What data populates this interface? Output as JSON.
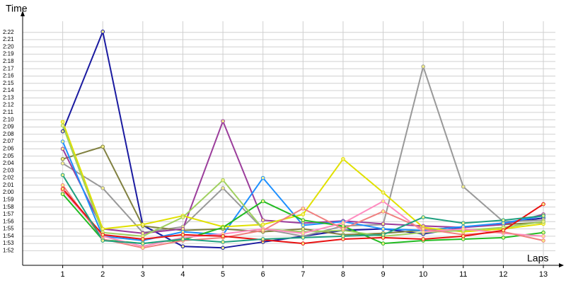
{
  "chart_data": {
    "type": "line",
    "y_label": "Time",
    "x_label": "Laps",
    "x": [
      1,
      2,
      3,
      4,
      5,
      6,
      7,
      8,
      9,
      10,
      11,
      12,
      13
    ],
    "xlim": [
      0,
      13.3
    ],
    "xticks": [
      1,
      2,
      3,
      4,
      5,
      6,
      7,
      8,
      9,
      10,
      11,
      12,
      13
    ],
    "ylim": [
      110,
      144.5
    ],
    "yticks": [
      {
        "value": 112,
        "label": "1:52"
      },
      {
        "value": 113,
        "label": "1:53"
      },
      {
        "value": 114,
        "label": "1:54"
      },
      {
        "value": 115,
        "label": "1:55"
      },
      {
        "value": 116,
        "label": "1:56"
      },
      {
        "value": 117,
        "label": "1:57"
      },
      {
        "value": 118,
        "label": "1:58"
      },
      {
        "value": 119,
        "label": "1:59"
      },
      {
        "value": 120,
        "label": "2:00"
      },
      {
        "value": 121,
        "label": "2:01"
      },
      {
        "value": 122,
        "label": "2:02"
      },
      {
        "value": 123,
        "label": "2:03"
      },
      {
        "value": 124,
        "label": "2:04"
      },
      {
        "value": 125,
        "label": "2:05"
      },
      {
        "value": 126,
        "label": "2:06"
      },
      {
        "value": 127,
        "label": "2:07"
      },
      {
        "value": 128,
        "label": "2:08"
      },
      {
        "value": 129,
        "label": "2:09"
      },
      {
        "value": 130,
        "label": "2:10"
      },
      {
        "value": 131,
        "label": "2:11"
      },
      {
        "value": 132,
        "label": "2:12"
      },
      {
        "value": 133,
        "label": "2:13"
      },
      {
        "value": 134,
        "label": "2:14"
      },
      {
        "value": 135,
        "label": "2:15"
      },
      {
        "value": 136,
        "label": "2:16"
      },
      {
        "value": 137,
        "label": "2:17"
      },
      {
        "value": 138,
        "label": "2:18"
      },
      {
        "value": 139,
        "label": "2:19"
      },
      {
        "value": 140,
        "label": "2:20"
      },
      {
        "value": 141,
        "label": "2:21"
      },
      {
        "value": 142,
        "label": "2:22"
      }
    ],
    "grid": true,
    "series": [
      {
        "color": "#1a1aa0",
        "values": [
          128.4,
          142.1,
          115.5,
          112.6,
          112.4,
          113.2,
          114.0,
          114.8,
          115.0,
          114.3,
          115.2,
          115.8,
          116.5
        ]
      },
      {
        "color": "#999999",
        "values": [
          124.0,
          120.6,
          114.5,
          115.3,
          120.6,
          115.0,
          114.0,
          115.4,
          115.6,
          137.3,
          120.8,
          116.0,
          116.2
        ]
      },
      {
        "color": "#808040",
        "values": [
          124.6,
          126.3,
          115.4,
          114.8,
          115.0,
          114.6,
          115.0,
          114.2,
          114.4,
          114.8,
          115.3,
          115.6,
          115.9
        ]
      },
      {
        "color": "#9b3d9b",
        "values": [
          126.0,
          115.0,
          114.4,
          115.0,
          129.8,
          116.2,
          115.8,
          116.1,
          115.7,
          115.4,
          115.2,
          115.6,
          117.0
        ]
      },
      {
        "color": "#1e90ff",
        "values": [
          127.0,
          114.0,
          113.4,
          114.6,
          114.2,
          122.0,
          115.5,
          116.0,
          115.0,
          114.8,
          115.3,
          115.8,
          116.8
        ]
      },
      {
        "color": "#e0e000",
        "values": [
          129.7,
          115.0,
          115.6,
          116.8,
          115.3,
          115.6,
          117.0,
          124.6,
          120.0,
          115.2,
          114.6,
          115.0,
          115.7
        ]
      },
      {
        "color": "#22bb22",
        "values": [
          119.8,
          113.5,
          113.0,
          113.5,
          115.2,
          118.8,
          116.2,
          115.4,
          113.0,
          113.4,
          113.6,
          113.8,
          114.5
        ]
      },
      {
        "color": "#a0d060",
        "values": [
          129.2,
          114.5,
          114.0,
          116.6,
          121.7,
          115.0,
          114.6,
          114.8,
          114.0,
          114.5,
          114.8,
          115.2,
          116.0
        ]
      },
      {
        "color": "#ff8cc0",
        "values": [
          120.3,
          114.0,
          112.6,
          113.8,
          114.3,
          115.0,
          114.4,
          115.8,
          118.8,
          114.6,
          115.0,
          114.4,
          114.0
        ]
      },
      {
        "color": "#f08080",
        "values": [
          121.0,
          113.6,
          112.4,
          113.4,
          113.8,
          114.8,
          117.8,
          115.0,
          117.4,
          115.0,
          114.2,
          114.6,
          113.4
        ]
      },
      {
        "color": "#e81010",
        "values": [
          120.5,
          114.2,
          113.6,
          114.2,
          114.0,
          113.5,
          113.0,
          113.6,
          113.8,
          113.6,
          114.0,
          114.8,
          118.4
        ]
      },
      {
        "color": "#20a080",
        "values": [
          122.4,
          113.4,
          113.0,
          113.6,
          113.2,
          113.6,
          113.8,
          114.0,
          114.2,
          116.6,
          115.8,
          116.2,
          116.8
        ]
      }
    ]
  }
}
